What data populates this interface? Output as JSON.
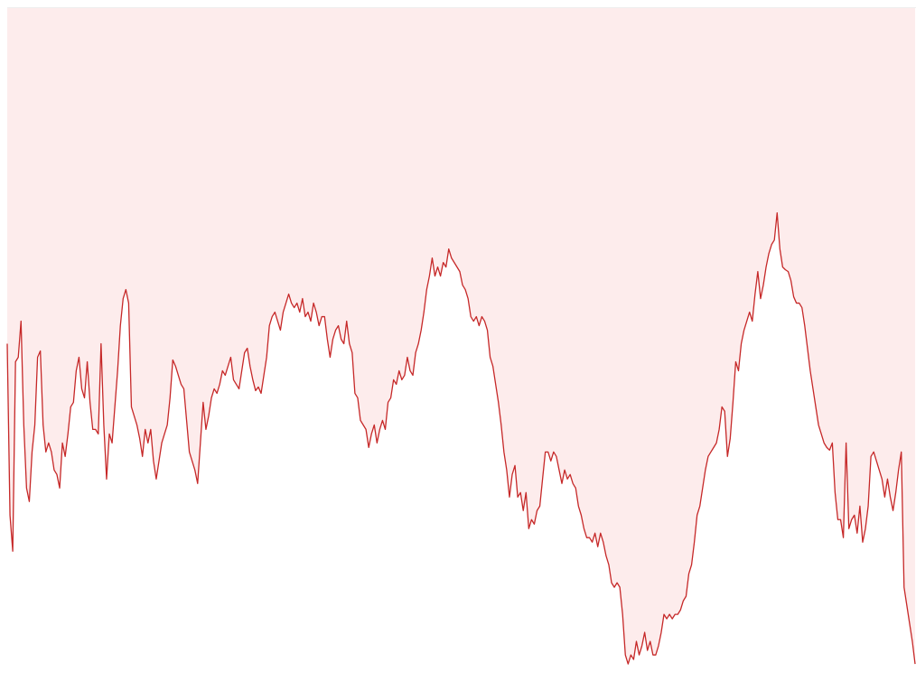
{
  "chart_data": {
    "type": "area",
    "color": "#c62828",
    "fill_color": "#fdecec",
    "ylim": [
      0,
      747
    ],
    "values": [
      375,
      185,
      145,
      355,
      360,
      400,
      285,
      215,
      200,
      255,
      285,
      360,
      367,
      285,
      255,
      265,
      255,
      235,
      230,
      215,
      265,
      250,
      275,
      305,
      310,
      345,
      360,
      325,
      315,
      355,
      310,
      280,
      280,
      275,
      375,
      285,
      225,
      275,
      265,
      305,
      345,
      395,
      425,
      435,
      420,
      305,
      295,
      285,
      270,
      250,
      280,
      265,
      280,
      245,
      225,
      245,
      265,
      275,
      285,
      315,
      357,
      350,
      340,
      330,
      325,
      290,
      255,
      245,
      235,
      220,
      265,
      310,
      280,
      295,
      315,
      325,
      320,
      330,
      345,
      340,
      350,
      360,
      335,
      330,
      325,
      345,
      365,
      370,
      350,
      335,
      323,
      327,
      320,
      340,
      360,
      395,
      405,
      410,
      400,
      390,
      410,
      420,
      430,
      420,
      415,
      420,
      410,
      425,
      405,
      410,
      400,
      420,
      410,
      395,
      405,
      405,
      380,
      360,
      380,
      390,
      395,
      380,
      375,
      400,
      375,
      365,
      320,
      315,
      290,
      285,
      280,
      260,
      275,
      285,
      265,
      280,
      290,
      280,
      310,
      315,
      335,
      330,
      345,
      335,
      340,
      360,
      345,
      340,
      365,
      375,
      390,
      410,
      435,
      450,
      470,
      450,
      460,
      450,
      465,
      460,
      480,
      470,
      465,
      460,
      455,
      440,
      435,
      425,
      405,
      400,
      405,
      395,
      405,
      400,
      390,
      360,
      350,
      330,
      310,
      285,
      255,
      235,
      205,
      230,
      240,
      205,
      210,
      190,
      210,
      170,
      180,
      175,
      190,
      195,
      225,
      255,
      255,
      245,
      255,
      250,
      235,
      220,
      235,
      225,
      230,
      220,
      215,
      195,
      185,
      170,
      160,
      160,
      155,
      165,
      150,
      165,
      155,
      140,
      130,
      110,
      105,
      110,
      105,
      75,
      30,
      20,
      30,
      25,
      45,
      30,
      40,
      55,
      35,
      45,
      30,
      30,
      40,
      55,
      75,
      70,
      75,
      70,
      75,
      75,
      80,
      90,
      95,
      120,
      130,
      155,
      185,
      195,
      215,
      235,
      250,
      255,
      260,
      265,
      280,
      305,
      300,
      250,
      270,
      310,
      355,
      345,
      375,
      390,
      400,
      410,
      400,
      430,
      455,
      425,
      440,
      460,
      475,
      485,
      490,
      520,
      480,
      460,
      457,
      455,
      445,
      427,
      420,
      420,
      415,
      395,
      370,
      345,
      325,
      305,
      285,
      275,
      265,
      260,
      257,
      265,
      210,
      180,
      180,
      160,
      265,
      170,
      180,
      185,
      165,
      195,
      155,
      170,
      195,
      250,
      255,
      245,
      235,
      225,
      205,
      225,
      205,
      190,
      210,
      235,
      255,
      105,
      85,
      65,
      45,
      20
    ]
  }
}
